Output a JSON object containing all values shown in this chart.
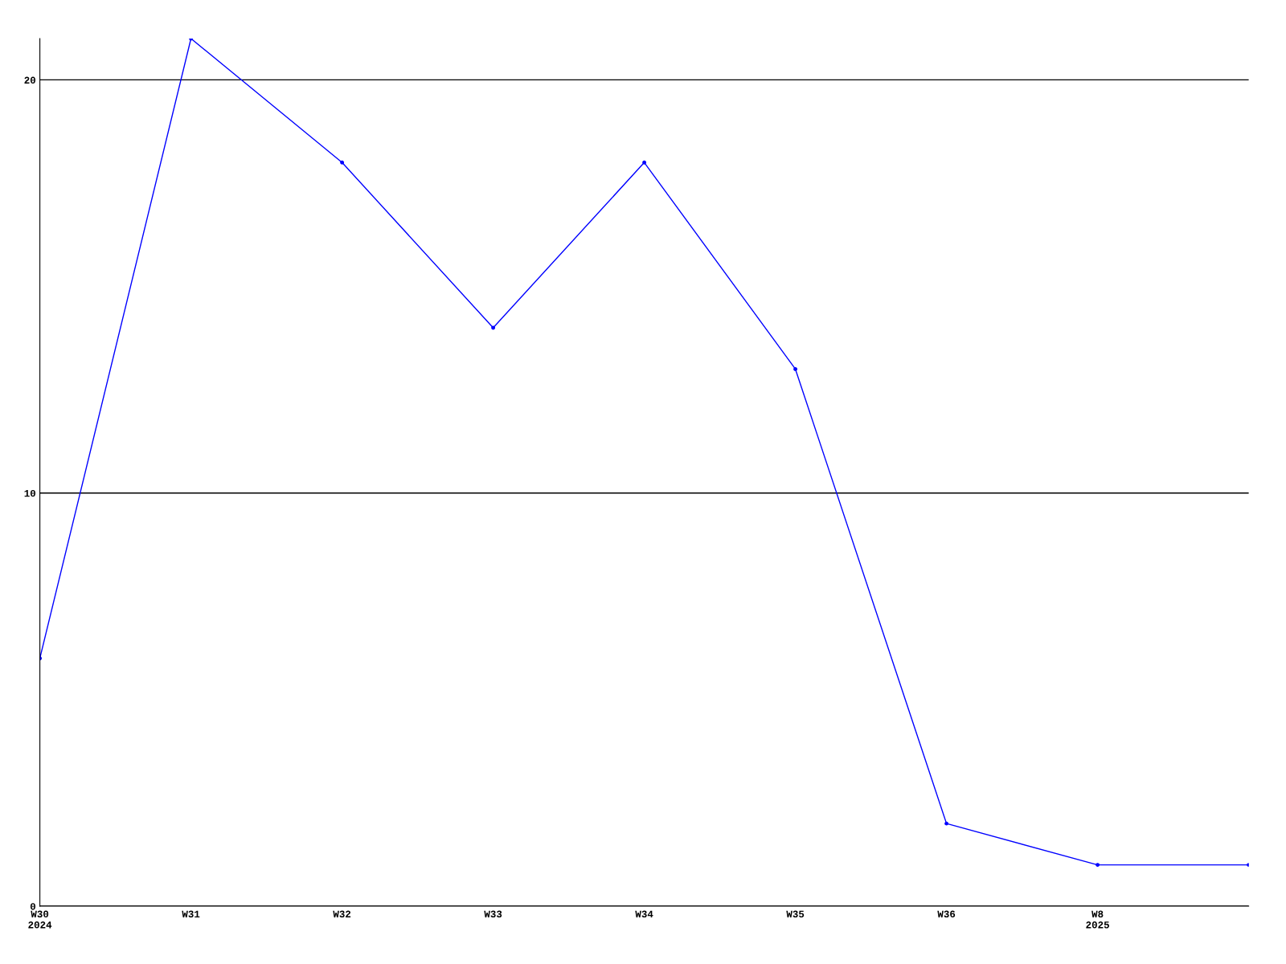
{
  "chart_data": {
    "type": "line",
    "categories": [
      "W30\n2024",
      "W31",
      "W32",
      "W33",
      "W34",
      "W35",
      "W36",
      "W8\n2025",
      null
    ],
    "series": [
      {
        "color": "#0000ff",
        "values": [
          6,
          21,
          18,
          14,
          18,
          13,
          2,
          1,
          1
        ]
      }
    ],
    "ylim": [
      0,
      21
    ],
    "yticks": [
      0,
      10,
      20
    ],
    "grid": "y",
    "marker": "circle",
    "line_style": "solid"
  }
}
